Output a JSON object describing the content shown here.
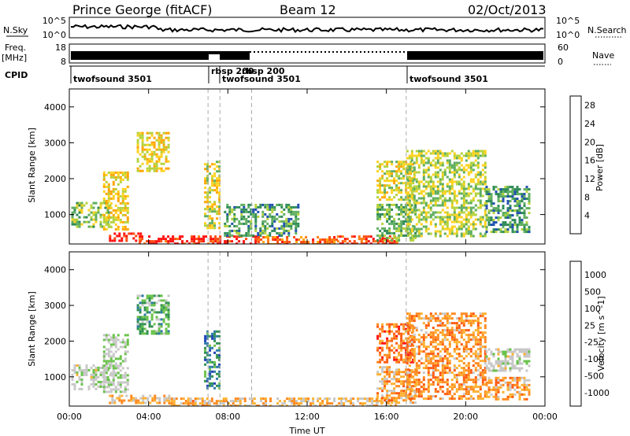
{
  "header": {
    "station": "Prince George (fitACF)",
    "beam": "Beam 12",
    "date": "02/Oct/2013"
  },
  "top_panels": {
    "nsky_label": "N.Sky",
    "nsearch_label": "N.Search",
    "nsky_ticks": [
      "10^5",
      "10^0"
    ],
    "nsearch_ticks": [
      "10^5",
      "10^0"
    ],
    "freq_label_1": "Freq.",
    "freq_label_2": "[MHz]",
    "freq_ticks": [
      "18",
      "8"
    ],
    "nave_label": "Nave",
    "nave_ticks": [
      "60",
      "0"
    ],
    "cpid_label": "CPID"
  },
  "cpid_segments": [
    {
      "label": "twofsound 3501",
      "start_hour": 0.0
    },
    {
      "label": "rbsp 200",
      "start_hour": 7.0
    },
    {
      "label": "rbsp 200",
      "start_hour": 7.6
    },
    {
      "label": "twofsound 3501",
      "start_hour": 7.6
    },
    {
      "label": "twofsound 3501",
      "start_hour": 17.0
    }
  ],
  "chart_data": [
    {
      "type": "heatmap",
      "title": "",
      "xlabel": "Time UT",
      "ylabel": "Slant Range [km]",
      "xlim": [
        0,
        24
      ],
      "ylim": [
        180,
        4500
      ],
      "x_ticks": [
        "00:00",
        "04:00",
        "08:00",
        "12:00",
        "16:00",
        "20:00",
        "00:00"
      ],
      "y_ticks": [
        "1000",
        "2000",
        "3000",
        "4000"
      ],
      "colorbar": {
        "label": "Power [dB]",
        "range": [
          0,
          30
        ],
        "ticks": [
          "4",
          "8",
          "12",
          "16",
          "20",
          "24",
          "28"
        ],
        "colors": [
          "#1a1aff",
          "#1f4fb0",
          "#2e8b57",
          "#5fae5f",
          "#b4d23c",
          "#ffd21e",
          "#ffa500",
          "#ff7a10",
          "#ff4a10",
          "#ff1010"
        ]
      },
      "regions": [
        {
          "t0": 0.1,
          "t1": 2.1,
          "r0": 650,
          "r1": 1350,
          "level": 0.4
        },
        {
          "t0": 1.7,
          "t1": 3.0,
          "r0": 600,
          "r1": 2200,
          "level": 0.55
        },
        {
          "t0": 2.0,
          "t1": 3.6,
          "r0": 250,
          "r1": 500,
          "level": 0.95
        },
        {
          "t0": 3.4,
          "t1": 5.0,
          "r0": 2200,
          "r1": 3300,
          "level": 0.55
        },
        {
          "t0": 3.5,
          "t1": 9.5,
          "r0": 200,
          "r1": 420,
          "level": 0.92
        },
        {
          "t0": 6.8,
          "t1": 7.6,
          "r0": 650,
          "r1": 2500,
          "level": 0.5
        },
        {
          "t0": 7.8,
          "t1": 11.5,
          "r0": 380,
          "r1": 1300,
          "level": 0.3
        },
        {
          "t0": 9.5,
          "t1": 13.5,
          "r0": 200,
          "r1": 400,
          "level": 0.78
        },
        {
          "t0": 13.5,
          "t1": 16.5,
          "r0": 220,
          "r1": 420,
          "level": 0.85
        },
        {
          "t0": 15.5,
          "t1": 17.3,
          "r0": 1400,
          "r1": 2500,
          "level": 0.5
        },
        {
          "t0": 15.5,
          "t1": 17.5,
          "r0": 300,
          "r1": 1300,
          "level": 0.35
        },
        {
          "t0": 17.0,
          "t1": 21.0,
          "r0": 400,
          "r1": 2800,
          "level": 0.45
        },
        {
          "t0": 21.0,
          "t1": 23.2,
          "r0": 500,
          "r1": 1800,
          "level": 0.3
        }
      ]
    },
    {
      "type": "heatmap",
      "title": "",
      "xlabel": "Time UT",
      "ylabel": "Slant Range [km]",
      "xlim": [
        0,
        24
      ],
      "ylim": [
        180,
        4500
      ],
      "x_ticks": [
        "00:00",
        "04:00",
        "08:00",
        "12:00",
        "16:00",
        "20:00",
        "00:00"
      ],
      "y_ticks": [
        "1000",
        "2000",
        "3000",
        "4000"
      ],
      "colorbar": {
        "label": "Velocity [m s^-1]",
        "range": [
          -1200,
          1200
        ],
        "ticks": [
          "1000",
          "500",
          "100",
          "25",
          "-25",
          "-100",
          "-500",
          "-1000"
        ],
        "colors": [
          "#1e3fb8",
          "#2e7aa8",
          "#2f8f4f",
          "#69c24a",
          "#c8c8c8",
          "#c8c8c8",
          "#ffb030",
          "#ff8a20",
          "#ff5a10",
          "#ff1010"
        ]
      },
      "regions": [
        {
          "t0": 0.1,
          "t1": 2.1,
          "r0": 650,
          "r1": 1350,
          "level": 0.47
        },
        {
          "t0": 1.7,
          "t1": 3.0,
          "r0": 600,
          "r1": 2200,
          "level": 0.45
        },
        {
          "t0": 2.0,
          "t1": 5.0,
          "r0": 250,
          "r1": 500,
          "level": 0.62
        },
        {
          "t0": 3.4,
          "t1": 5.0,
          "r0": 2200,
          "r1": 3300,
          "level": 0.32
        },
        {
          "t0": 5.0,
          "t1": 9.5,
          "r0": 200,
          "r1": 420,
          "level": 0.66
        },
        {
          "t0": 6.8,
          "t1": 7.6,
          "r0": 650,
          "r1": 2300,
          "level": 0.2
        },
        {
          "t0": 9.5,
          "t1": 16.5,
          "r0": 200,
          "r1": 420,
          "level": 0.64
        },
        {
          "t0": 15.5,
          "t1": 17.3,
          "r0": 1400,
          "r1": 2500,
          "level": 0.8
        },
        {
          "t0": 15.5,
          "t1": 17.5,
          "r0": 300,
          "r1": 1300,
          "level": 0.7
        },
        {
          "t0": 17.0,
          "t1": 21.0,
          "r0": 400,
          "r1": 2800,
          "level": 0.72
        },
        {
          "t0": 21.0,
          "t1": 23.2,
          "r0": 1200,
          "r1": 1800,
          "level": 0.47
        },
        {
          "t0": 21.0,
          "t1": 23.2,
          "r0": 400,
          "r1": 1000,
          "level": 0.7
        }
      ]
    }
  ]
}
